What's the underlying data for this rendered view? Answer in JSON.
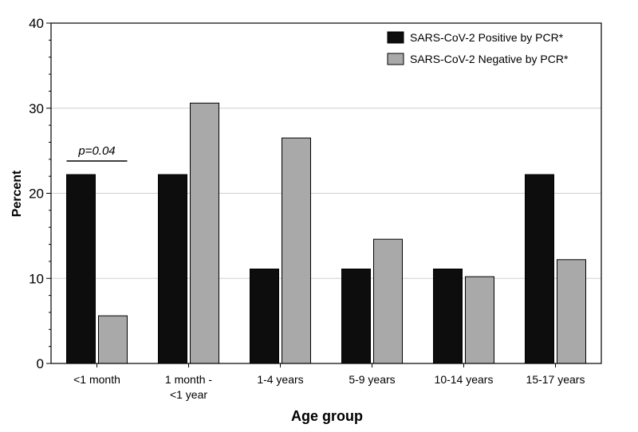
{
  "chart_data": {
    "type": "bar",
    "title": "",
    "xlabel": "Age group",
    "ylabel": "Percent",
    "ylim": [
      0,
      40
    ],
    "yticks": [
      0,
      10,
      20,
      30,
      40
    ],
    "grid": "horizontal",
    "legend_position": "top-right",
    "categories": [
      [
        "<1 month"
      ],
      [
        "1 month -",
        "<1 year"
      ],
      [
        "1-4 years"
      ],
      [
        "5-9 years"
      ],
      [
        "10-14 years"
      ],
      [
        "15-17 years"
      ]
    ],
    "series": [
      {
        "name": "SARS-CoV-2 Positive by PCR*",
        "color": "#0d0d0d",
        "values": [
          22.2,
          22.2,
          11.1,
          11.1,
          11.1,
          22.2
        ]
      },
      {
        "name": "SARS-CoV-2 Negative by PCR*",
        "color": "#a9a9a9",
        "values": [
          5.6,
          30.6,
          26.5,
          14.6,
          10.2,
          12.2
        ]
      }
    ],
    "annotations": [
      {
        "text": "p=0.04",
        "category_index": 0
      }
    ]
  }
}
